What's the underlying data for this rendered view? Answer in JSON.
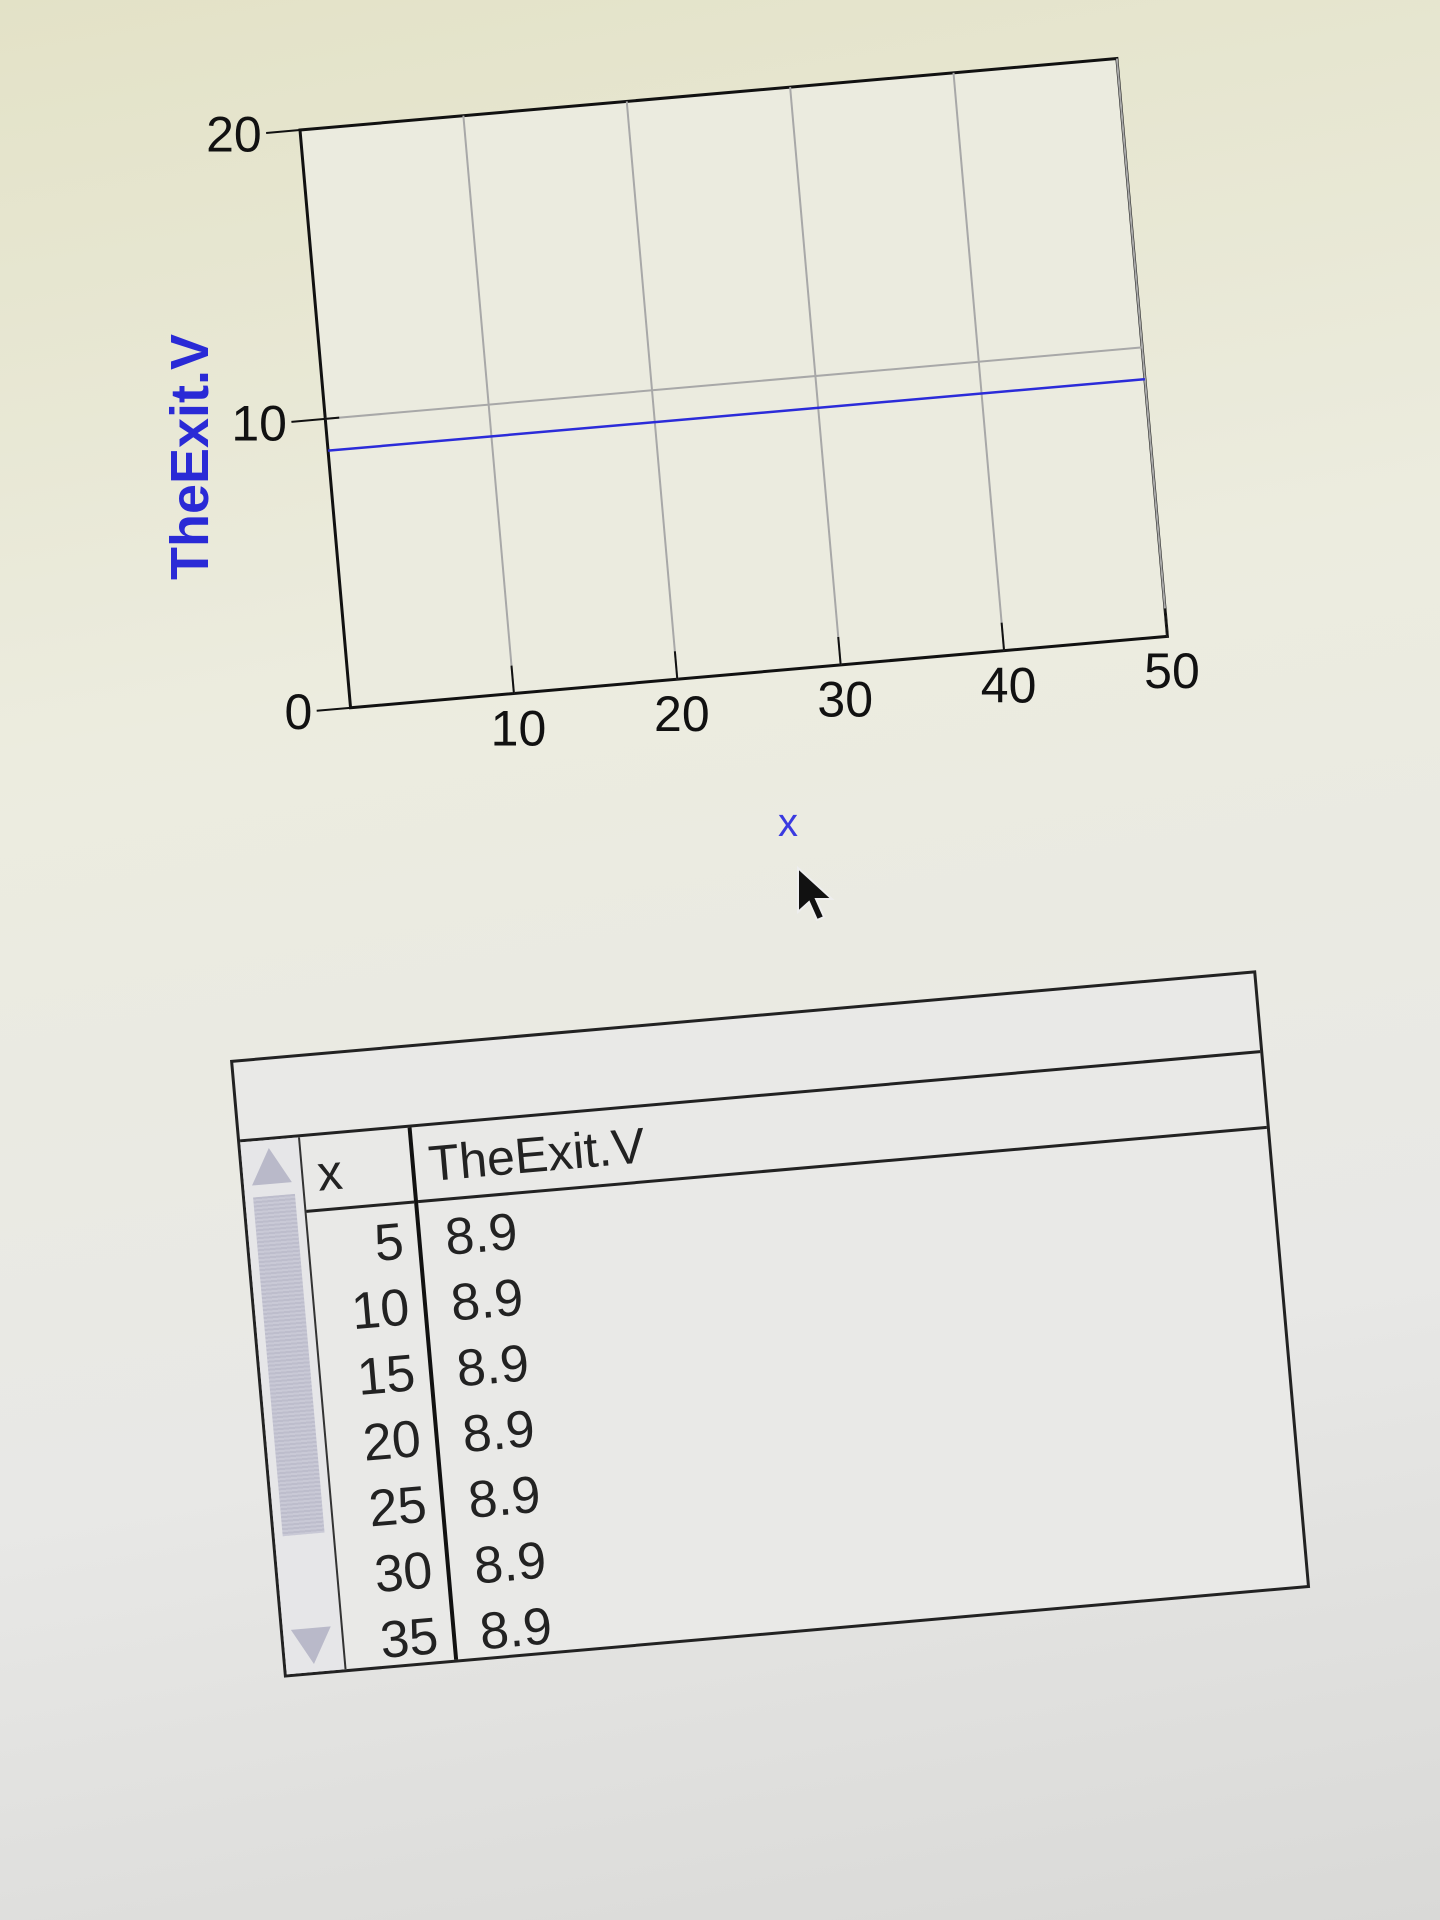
{
  "chart_data": {
    "type": "line",
    "ylabel": "TheExit.V",
    "xlabel": "x",
    "xlim": [
      0,
      50
    ],
    "ylim": [
      0,
      20
    ],
    "x_ticks": [
      "10",
      "20",
      "30",
      "40",
      "50"
    ],
    "y_ticks": [
      "0",
      "10",
      "20"
    ],
    "grid": true,
    "series": [
      {
        "color": "#2b2bd9",
        "x": [
          0,
          50
        ],
        "y": [
          8.9,
          8.9
        ]
      }
    ]
  },
  "table": {
    "columns": [
      "x",
      "TheExit.V"
    ],
    "rows": [
      [
        "5",
        "8.9"
      ],
      [
        "10",
        "8.9"
      ],
      [
        "15",
        "8.9"
      ],
      [
        "20",
        "8.9"
      ],
      [
        "25",
        "8.9"
      ],
      [
        "30",
        "8.9"
      ],
      [
        "35",
        "8.9"
      ]
    ]
  },
  "colors": {
    "series": "#2b2bd9",
    "axis_label": "#2a2ad6",
    "grid": "#a8a8a8"
  },
  "icons": {
    "cursor": "arrow-cursor-icon",
    "scroll_up": "scroll-up-arrow-icon",
    "scroll_down": "scroll-down-arrow-icon"
  }
}
